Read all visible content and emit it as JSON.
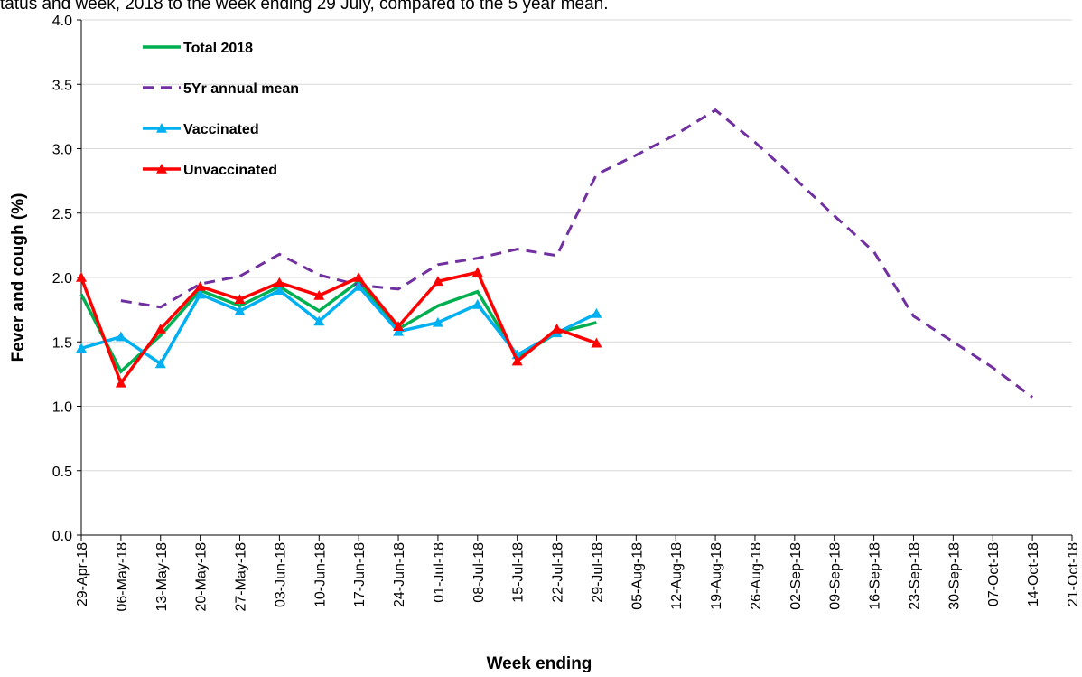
{
  "chart_data": {
    "type": "line",
    "title": "tatus and week, 2018 to the week ending 29 July, compared to the 5 year mean.",
    "x_label": "Week ending",
    "y_label": "Fever and cough (%)",
    "categories": [
      "29-Apr-18",
      "06-May-18",
      "13-May-18",
      "20-May-18",
      "27-May-18",
      "03-Jun-18",
      "10-Jun-18",
      "17-Jun-18",
      "24-Jun-18",
      "01-Jul-18",
      "08-Jul-18",
      "15-Jul-18",
      "22-Jul-18",
      "29-Jul-18",
      "05-Aug-18",
      "12-Aug-18",
      "19-Aug-18",
      "26-Aug-18",
      "02-Sep-18",
      "09-Sep-18",
      "16-Sep-18",
      "23-Sep-18",
      "30-Sep-18",
      "07-Oct-18",
      "14-Oct-18",
      "21-Oct-18"
    ],
    "series": [
      {
        "name": "Total 2018",
        "color": "#00b050",
        "style": "solid",
        "marker": "none",
        "values": [
          1.87,
          1.27,
          1.55,
          1.9,
          1.78,
          1.93,
          1.74,
          1.97,
          1.6,
          1.78,
          1.89,
          1.38,
          1.57,
          1.65,
          null,
          null,
          null,
          null,
          null,
          null,
          null,
          null,
          null,
          null,
          null,
          null
        ]
      },
      {
        "name": "5Yr annual mean",
        "color": "#7030a0",
        "style": "dashed",
        "marker": "none",
        "values": [
          null,
          1.82,
          1.77,
          1.95,
          2.01,
          2.18,
          2.02,
          1.94,
          1.91,
          2.1,
          2.15,
          2.22,
          2.17,
          2.8,
          2.95,
          3.11,
          3.3,
          3.05,
          2.77,
          2.48,
          2.2,
          1.7,
          1.5,
          1.3,
          1.07,
          null
        ]
      },
      {
        "name": "Vaccinated",
        "color": "#00b0f0",
        "style": "solid",
        "marker": "triangle",
        "values": [
          1.45,
          1.54,
          1.33,
          1.87,
          1.74,
          1.9,
          1.66,
          1.93,
          1.58,
          1.65,
          1.79,
          1.4,
          1.57,
          1.72,
          null,
          null,
          null,
          null,
          null,
          null,
          null,
          null,
          null,
          null,
          null,
          null
        ]
      },
      {
        "name": "Unvaccinated",
        "color": "#ff0000",
        "style": "solid",
        "marker": "triangle",
        "values": [
          2.0,
          1.18,
          1.6,
          1.93,
          1.83,
          1.96,
          1.86,
          2.0,
          1.62,
          1.97,
          2.04,
          1.35,
          1.6,
          1.49,
          null,
          null,
          null,
          null,
          null,
          null,
          null,
          null,
          null,
          null,
          null,
          null
        ]
      }
    ],
    "ylim": [
      0,
      4
    ],
    "yticks": [
      {
        "value": 0,
        "label": "0.0"
      },
      0.5,
      {
        "value": 1,
        "label": "1.0"
      },
      1.5,
      {
        "value": 2,
        "label": "2.0"
      },
      2.5,
      {
        "value": 3,
        "label": "3.0"
      },
      3.5,
      {
        "value": 4,
        "label": "4.0"
      }
    ],
    "grid": true,
    "legend": "upper-left"
  }
}
